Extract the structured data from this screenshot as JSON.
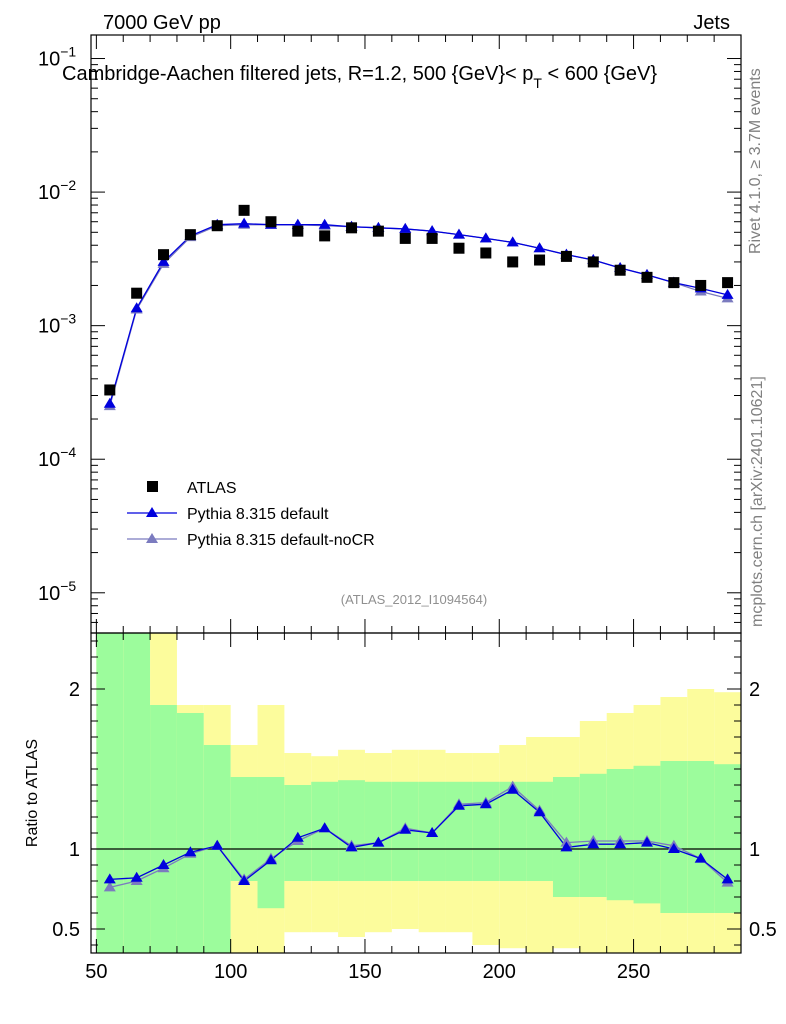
{
  "header": {
    "left": "7000 GeV pp",
    "right": "Jets"
  },
  "side_labels": {
    "rivet": "Rivet 4.1.0, ≥ 3.7M events",
    "mcplots": "mcplots.cern.ch [arXiv:2401.10621]"
  },
  "watermark": "(ATLAS_2012_I1094564)",
  "colors": {
    "data": "#000000",
    "default": "#0000dd",
    "nocr": "#7b7bbf",
    "band_inner": "#9cfc9c",
    "band_outer": "#fcfc9c"
  },
  "chart_data": [
    {
      "type": "scatter",
      "title": "Cambridge-Aachen filtered jets, R=1.2, 500 {GeV}< p_T < 600 {GeV}",
      "title_parts": {
        "pre": "Cambridge-Aachen filtered jets, R=1.2, 500 {GeV}< p",
        "sub": "T",
        "post": " < 600 {GeV}"
      },
      "yscale": "log",
      "ylim": [
        5e-06,
        0.15
      ],
      "xlim": [
        48,
        290
      ],
      "y_tick_labels": [
        {
          "value": 0.1,
          "base": "10",
          "exp": "−1"
        },
        {
          "value": 0.01,
          "base": "10",
          "exp": "−2"
        },
        {
          "value": 0.001,
          "base": "10",
          "exp": "−3"
        },
        {
          "value": 0.0001,
          "base": "10",
          "exp": "−4"
        },
        {
          "value": 1e-05,
          "base": "10",
          "exp": "−5"
        }
      ],
      "x": [
        55,
        65,
        75,
        85,
        95,
        105,
        115,
        125,
        135,
        145,
        155,
        165,
        175,
        185,
        195,
        205,
        215,
        225,
        235,
        245,
        255,
        265,
        275,
        285
      ],
      "series": [
        {
          "name": "ATLAS",
          "marker": "square",
          "values": [
            0.00033,
            0.00175,
            0.0034,
            0.0048,
            0.0056,
            0.0073,
            0.006,
            0.0051,
            0.0047,
            0.0054,
            0.0051,
            0.0045,
            0.0045,
            0.0038,
            0.0035,
            0.003,
            0.0031,
            0.0033,
            0.003,
            0.0026,
            0.0023,
            0.0021,
            0.002,
            0.0021
          ]
        },
        {
          "name": "Pythia 8.315 default",
          "marker": "triangle",
          "values": [
            0.00026,
            0.00135,
            0.003,
            0.0047,
            0.0057,
            0.0058,
            0.0057,
            0.0057,
            0.0057,
            0.0055,
            0.0054,
            0.0053,
            0.0051,
            0.0048,
            0.0045,
            0.0042,
            0.0038,
            0.0034,
            0.0031,
            0.0027,
            0.0024,
            0.0021,
            0.0019,
            0.0017
          ]
        },
        {
          "name": "Pythia 8.315 default-noCR",
          "marker": "triangle",
          "values": [
            0.00025,
            0.00132,
            0.0029,
            0.0046,
            0.0056,
            0.0057,
            0.0057,
            0.0057,
            0.0056,
            0.0055,
            0.0054,
            0.0053,
            0.0051,
            0.0048,
            0.0045,
            0.0042,
            0.0038,
            0.0034,
            0.0031,
            0.0027,
            0.0024,
            0.0021,
            0.0018,
            0.0016
          ]
        }
      ]
    },
    {
      "type": "line",
      "ylabel": "Ratio to ATLAS",
      "ylim": [
        0.35,
        2.35
      ],
      "xlim": [
        48,
        290
      ],
      "y_ticks": [
        0.5,
        1,
        2
      ],
      "y_tick_labels": [
        "0.5",
        "1",
        "2"
      ],
      "x_ticks": [
        50,
        100,
        150,
        200,
        250
      ],
      "x_tick_labels": [
        "50",
        "100",
        "150",
        "200",
        "250"
      ],
      "band_edges": [
        50,
        60,
        70,
        80,
        90,
        100,
        110,
        120,
        130,
        140,
        150,
        160,
        170,
        180,
        190,
        200,
        210,
        220,
        230,
        240,
        250,
        260,
        270,
        280,
        290
      ],
      "band_inner_lo": [
        0.3,
        0.3,
        0.3,
        0.3,
        0.3,
        0.8,
        0.63,
        0.8,
        0.8,
        0.8,
        0.8,
        0.8,
        0.8,
        0.8,
        0.8,
        0.8,
        0.8,
        0.7,
        0.7,
        0.68,
        0.66,
        0.6,
        0.6,
        0.6
      ],
      "band_inner_hi": [
        2.4,
        2.4,
        1.9,
        1.85,
        1.65,
        1.45,
        1.45,
        1.4,
        1.42,
        1.43,
        1.42,
        1.42,
        1.42,
        1.42,
        1.42,
        1.42,
        1.42,
        1.45,
        1.47,
        1.5,
        1.52,
        1.55,
        1.55,
        1.53
      ],
      "band_outer_lo": [
        0.3,
        0.3,
        0.3,
        0.3,
        0.3,
        0.3,
        0.3,
        0.48,
        0.48,
        0.45,
        0.48,
        0.5,
        0.48,
        0.48,
        0.4,
        0.38,
        0.35,
        0.38,
        0.35,
        0.33,
        0.33,
        0.33,
        0.33,
        0.33
      ],
      "band_outer_hi": [
        2.4,
        2.4,
        2.4,
        1.9,
        1.9,
        1.65,
        1.9,
        1.6,
        1.58,
        1.62,
        1.6,
        1.62,
        1.62,
        1.6,
        1.6,
        1.65,
        1.7,
        1.7,
        1.8,
        1.85,
        1.9,
        1.95,
        2.0,
        1.98
      ],
      "x": [
        55,
        65,
        75,
        85,
        95,
        105,
        115,
        125,
        135,
        145,
        155,
        165,
        175,
        185,
        195,
        205,
        215,
        225,
        235,
        245,
        255,
        265,
        275,
        285
      ],
      "series": [
        {
          "name": "Pythia 8.315 default",
          "values": [
            0.81,
            0.82,
            0.9,
            0.98,
            1.02,
            0.8,
            0.93,
            1.07,
            1.13,
            1.01,
            1.04,
            1.12,
            1.1,
            1.27,
            1.28,
            1.37,
            1.23,
            1.01,
            1.03,
            1.03,
            1.04,
            1.0,
            0.94,
            0.81
          ]
        },
        {
          "name": "Pythia 8.315 default-noCR",
          "values": [
            0.76,
            0.8,
            0.88,
            0.97,
            1.02,
            0.81,
            0.94,
            1.05,
            1.13,
            1.02,
            1.04,
            1.13,
            1.1,
            1.28,
            1.29,
            1.39,
            1.24,
            1.04,
            1.05,
            1.05,
            1.05,
            1.02,
            0.94,
            0.79
          ]
        }
      ]
    }
  ]
}
